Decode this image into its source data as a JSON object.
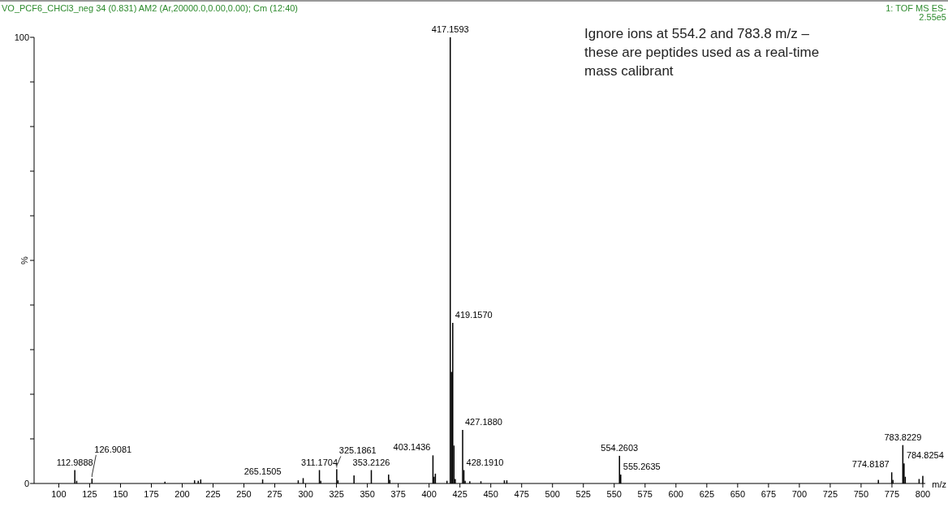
{
  "chart_data": {
    "type": "bar",
    "title": "VO_PCF6_CHCl3_neg 34 (0.831) AM2 (Ar,20000.0,0.00,0.00); Cm (12:40)",
    "subtitle": "1: TOF MS ES-\n2.55e5",
    "xlabel": "m/z",
    "ylabel": "%",
    "x": [
      112.9888,
      114.5,
      126.9081,
      186,
      210,
      213,
      215,
      265.1505,
      294,
      298,
      311.1704,
      312.2,
      325.1861,
      326.2,
      339.2,
      353.2126,
      367.2,
      368.2,
      403.1436,
      404.1,
      405.1,
      414.5,
      417.1593,
      418.16,
      419.157,
      420.16,
      421.2,
      427.188,
      428.191,
      429.2,
      433,
      442,
      461,
      463,
      554.2603,
      555.2635,
      764,
      774.8187,
      775.8,
      783.8229,
      784.8254,
      785.8,
      797,
      800
    ],
    "series": [
      {
        "color": "#000000",
        "values": [
          3.0,
          0.6,
          1.1,
          0.4,
          0.7,
          0.6,
          0.9,
          0.9,
          0.7,
          1.2,
          3.0,
          0.6,
          3.2,
          0.7,
          1.8,
          3.0,
          2.0,
          0.8,
          6.3,
          1.5,
          2.2,
          0.6,
          100,
          25,
          36,
          8.5,
          1.0,
          12,
          3.0,
          0.6,
          0.5,
          0.5,
          0.7,
          0.7,
          6.2,
          2.0,
          0.8,
          2.5,
          0.8,
          8.6,
          4.5,
          1.5,
          1.0,
          1.7
        ]
      }
    ],
    "xlim": [
      80,
      802
    ],
    "ylim": [
      0,
      100
    ],
    "xticks": [
      100,
      125,
      150,
      175,
      200,
      225,
      250,
      275,
      300,
      325,
      350,
      375,
      400,
      425,
      450,
      475,
      500,
      525,
      550,
      575,
      600,
      625,
      650,
      675,
      700,
      725,
      750,
      775,
      800
    ],
    "yticks": [
      0,
      {
        "value": 10,
        "label": null
      },
      {
        "value": 20,
        "label": null
      },
      {
        "value": 30,
        "label": null
      },
      {
        "value": 40,
        "label": null
      },
      {
        "value": 50,
        "label": null
      },
      {
        "value": 60,
        "label": null
      },
      {
        "value": 70,
        "label": null
      },
      {
        "value": 80,
        "label": null
      },
      {
        "value": 90,
        "label": null
      },
      100
    ],
    "grid": false,
    "annotations": [
      "Ignore ions at 554.2 and 783.8 m/z – these are peptides used as a real-time mass calibrant",
      {
        "text": "112.9888",
        "x": 112.9888,
        "y": 3.0
      },
      {
        "text": "126.9081",
        "x": 126.9081,
        "y": 1.1
      },
      {
        "text": "265.1505",
        "x": 265.1505,
        "y": 0.9
      },
      {
        "text": "311.1704",
        "x": 311.1704,
        "y": 3.0
      },
      {
        "text": "325.1861",
        "x": 325.1861,
        "y": 3.2
      },
      {
        "text": "353.2126",
        "x": 353.2126,
        "y": 3.0
      },
      {
        "text": "403.1436",
        "x": 403.1436,
        "y": 6.3
      },
      {
        "text": "417.1593",
        "x": 417.1593,
        "y": 100
      },
      {
        "text": "419.1570",
        "x": 419.157,
        "y": 36
      },
      {
        "text": "427.1880",
        "x": 427.188,
        "y": 12
      },
      {
        "text": "428.1910",
        "x": 428.191,
        "y": 3.0
      },
      {
        "text": "554.2603",
        "x": 554.2603,
        "y": 6.2
      },
      {
        "text": "555.2635",
        "x": 555.2635,
        "y": 2.0
      },
      {
        "text": "774.8187",
        "x": 774.8187,
        "y": 2.5
      },
      {
        "text": "783.8229",
        "x": 783.8229,
        "y": 8.6
      },
      {
        "text": "784.8254",
        "x": 784.8254,
        "y": 4.5
      }
    ]
  }
}
